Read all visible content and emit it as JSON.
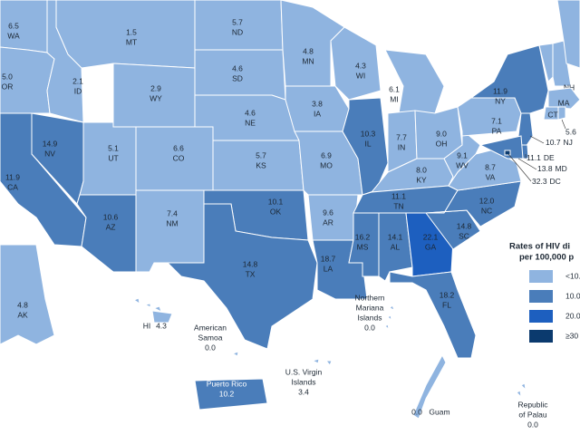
{
  "regions": [
    {
      "label": "WA",
      "value": "6.5",
      "color": "#8fb4e0"
    },
    {
      "label": "OR",
      "value": "5.0",
      "color": "#8fb4e0"
    },
    {
      "label": "CA",
      "value": "11.9",
      "color": "#4a7dba"
    },
    {
      "label": "ID",
      "value": "2.1",
      "color": "#8fb4e0"
    },
    {
      "label": "NV",
      "value": "14.9",
      "color": "#4a7dba"
    },
    {
      "label": "MT",
      "value": "1.5",
      "color": "#8fb4e0"
    },
    {
      "label": "WY",
      "value": "2.9",
      "color": "#8fb4e0"
    },
    {
      "label": "UT",
      "value": "5.1",
      "color": "#8fb4e0"
    },
    {
      "label": "AZ",
      "value": "10.6",
      "color": "#4a7dba"
    },
    {
      "label": "CO",
      "value": "6.6",
      "color": "#8fb4e0"
    },
    {
      "label": "NM",
      "value": "7.4",
      "color": "#8fb4e0"
    },
    {
      "label": "ND",
      "value": "5.7",
      "color": "#8fb4e0"
    },
    {
      "label": "SD",
      "value": "4.6",
      "color": "#8fb4e0"
    },
    {
      "label": "NE",
      "value": "4.6",
      "color": "#8fb4e0"
    },
    {
      "label": "KS",
      "value": "5.7",
      "color": "#8fb4e0"
    },
    {
      "label": "OK",
      "value": "10.1",
      "color": "#4a7dba"
    },
    {
      "label": "TX",
      "value": "14.8",
      "color": "#4a7dba"
    },
    {
      "label": "MN",
      "value": "4.8",
      "color": "#8fb4e0"
    },
    {
      "label": "IA",
      "value": "3.8",
      "color": "#8fb4e0"
    },
    {
      "label": "MO",
      "value": "6.9",
      "color": "#8fb4e0"
    },
    {
      "label": "AR",
      "value": "9.6",
      "color": "#8fb4e0"
    },
    {
      "label": "LA",
      "value": "18.7",
      "color": "#4a7dba"
    },
    {
      "label": "WI",
      "value": "4.3",
      "color": "#8fb4e0"
    },
    {
      "label": "IL",
      "value": "10.3",
      "color": "#4a7dba"
    },
    {
      "label": "MI",
      "value": "6.1",
      "color": "#8fb4e0"
    },
    {
      "label": "IN",
      "value": "7.7",
      "color": "#8fb4e0"
    },
    {
      "label": "OH",
      "value": "9.0",
      "color": "#8fb4e0"
    },
    {
      "label": "KY",
      "value": "8.0",
      "color": "#8fb4e0"
    },
    {
      "label": "TN",
      "value": "11.1",
      "color": "#4a7dba"
    },
    {
      "label": "MS",
      "value": "16.2",
      "color": "#4a7dba"
    },
    {
      "label": "AL",
      "value": "14.1",
      "color": "#4a7dba"
    },
    {
      "label": "GA",
      "value": "22.1",
      "color": "#1d5fbf"
    },
    {
      "label": "SC",
      "value": "14.8",
      "color": "#4a7dba"
    },
    {
      "label": "NC",
      "value": "12.0",
      "color": "#4a7dba"
    },
    {
      "label": "FL",
      "value": "18.2",
      "color": "#4a7dba"
    },
    {
      "label": "VA",
      "value": "8.7",
      "color": "#8fb4e0"
    },
    {
      "label": "WV",
      "value": "9.1",
      "color": "#8fb4e0"
    },
    {
      "label": "PA",
      "value": "7.1",
      "color": "#8fb4e0"
    },
    {
      "label": "NY",
      "value": "11.9",
      "color": "#4a7dba"
    },
    {
      "label": "VT",
      "value": "2.2",
      "color": "#8fb4e0"
    },
    {
      "label": "NH",
      "color": "#8fb4e0"
    },
    {
      "color": "#8fb4e0"
    },
    {
      "label": "MA",
      "color": "#8fb4e0"
    },
    {
      "label": "CT",
      "color": "#8fb4e0"
    },
    {
      "value": "5.6",
      "color": "#8fb4e0"
    },
    {
      "label": "NJ",
      "value": "10.7",
      "color": "#4a7dba"
    },
    {
      "label": "DE",
      "value": "11.1",
      "color": "#4a7dba"
    },
    {
      "label": "MD",
      "value": "13.8",
      "color": "#4a7dba"
    },
    {
      "label": "DC",
      "value": "32.3",
      "color": "#0b3a6e"
    },
    {
      "label": "AK",
      "value": "4.8",
      "color": "#8fb4e0"
    },
    {
      "label": "HI",
      "value": "4.3",
      "color": "#8fb4e0"
    },
    {
      "name_lines": [
        "American",
        "Samoa"
      ],
      "value": "0.0",
      "color": "#8fb4e0"
    },
    {
      "name_lines": [
        "U.S. Virgin",
        "Islands"
      ],
      "value": "3.4",
      "color": "#8fb4e0"
    },
    {
      "name_lines": [
        "Northern",
        "Mariana",
        "Islands"
      ],
      "value": "0.0",
      "color": "#8fb4e0"
    },
    {
      "name_lines": [
        "Puerto Rico"
      ],
      "value": "10.2",
      "color": "#4a7dba"
    },
    {
      "name_lines": [
        "Guam"
      ],
      "value": "0.0",
      "color": "#8fb4e0"
    },
    {
      "name_lines": [
        "Republic",
        "of Palau"
      ],
      "value": "0.0",
      "color": "#8fb4e0"
    }
  ],
  "legend": {
    "title_lines": [
      "Rates of HIV di",
      "per 100,000 p"
    ],
    "items": [
      {
        "label": "<10.",
        "color": "#8fb4e0"
      },
      {
        "label": "10.0",
        "color": "#4a7dba"
      },
      {
        "label": "20.0",
        "color": "#1d5fbf"
      },
      {
        "label": "≥30",
        "color": "#0b3a6e"
      }
    ]
  }
}
